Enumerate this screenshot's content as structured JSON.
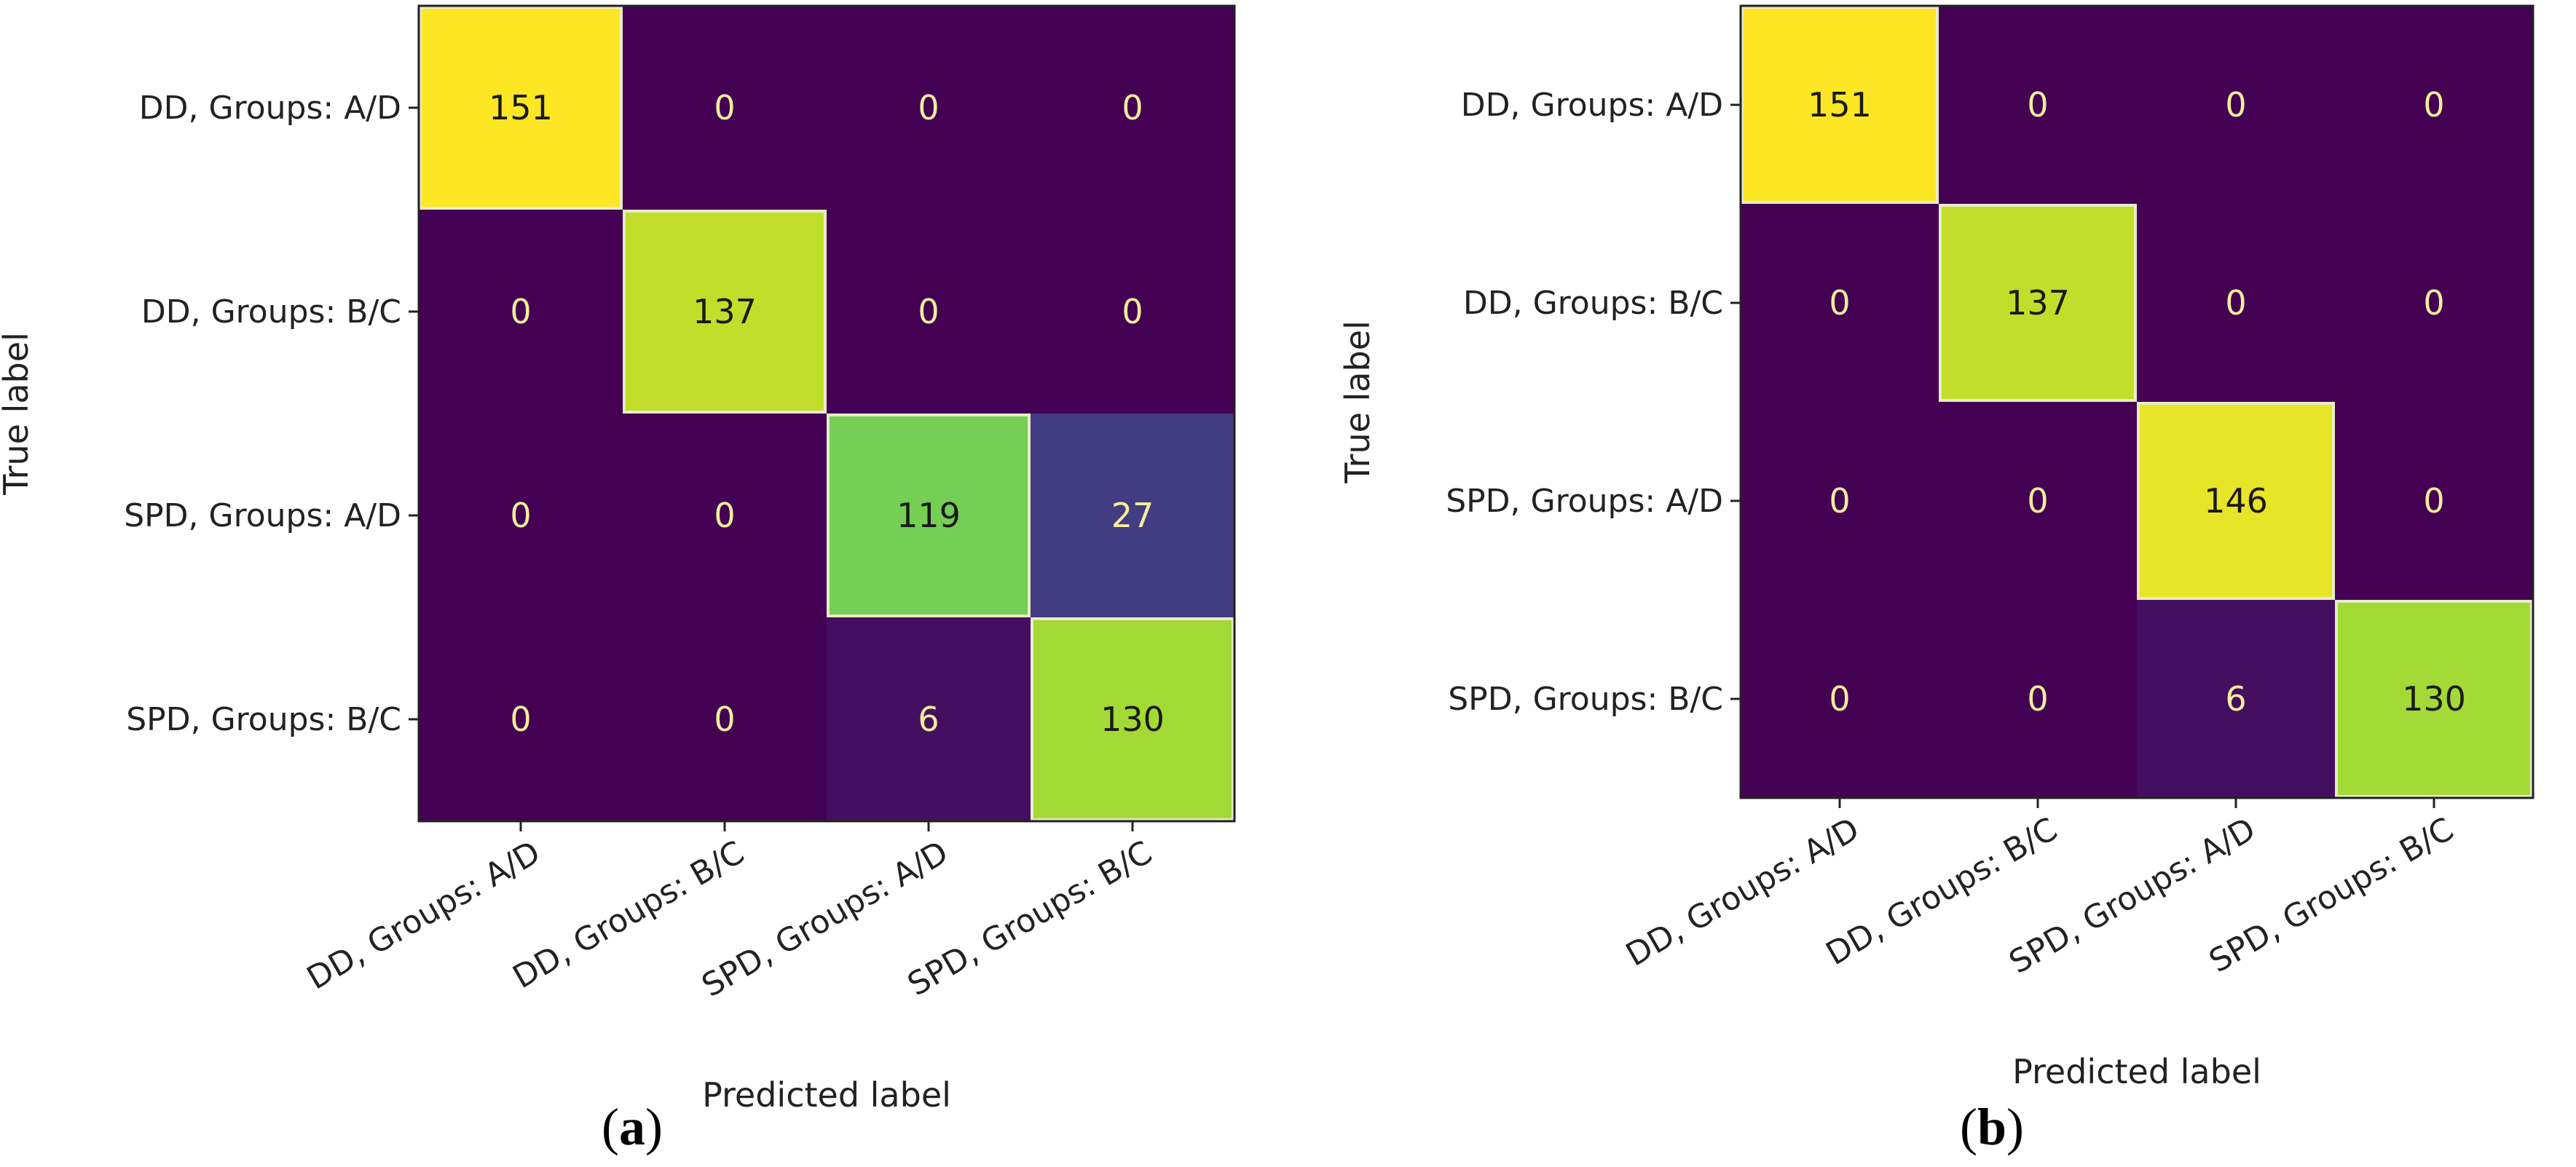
{
  "chart_data": [
    {
      "type": "heatmap",
      "title": "",
      "xlabel": "Predicted label",
      "ylabel": "True label",
      "x_tick_labels": [
        "DD, Groups: A/D",
        "DD, Groups: B/C",
        "SPD, Groups: A/D",
        "SPD, Groups: B/C"
      ],
      "y_tick_labels": [
        "DD, Groups: A/D",
        "DD, Groups: B/C",
        "SPD, Groups: A/D",
        "SPD, Groups: B/C"
      ],
      "values": [
        [
          151,
          0,
          0,
          0
        ],
        [
          0,
          137,
          0,
          0
        ],
        [
          0,
          0,
          119,
          27
        ],
        [
          0,
          0,
          6,
          130
        ]
      ],
      "colormap": "viridis",
      "vmin": 0,
      "vmax": 151
    },
    {
      "type": "heatmap",
      "title": "",
      "xlabel": "Predicted label",
      "ylabel": "True label",
      "x_tick_labels": [
        "DD, Groups: A/D",
        "DD, Groups: B/C",
        "SPD, Groups: A/D",
        "SPD, Groups: B/C"
      ],
      "y_tick_labels": [
        "DD, Groups: A/D",
        "DD, Groups: B/C",
        "SPD, Groups: A/D",
        "SPD, Groups: B/C"
      ],
      "values": [
        [
          151,
          0,
          0,
          0
        ],
        [
          0,
          137,
          0,
          0
        ],
        [
          0,
          0,
          146,
          0
        ],
        [
          0,
          0,
          6,
          130
        ]
      ],
      "colormap": "viridis",
      "vmin": 0,
      "vmax": 151
    }
  ],
  "captions": [
    {
      "open": "(",
      "letter": "a",
      "close": ")"
    },
    {
      "open": "(",
      "letter": "b",
      "close": ")"
    }
  ]
}
